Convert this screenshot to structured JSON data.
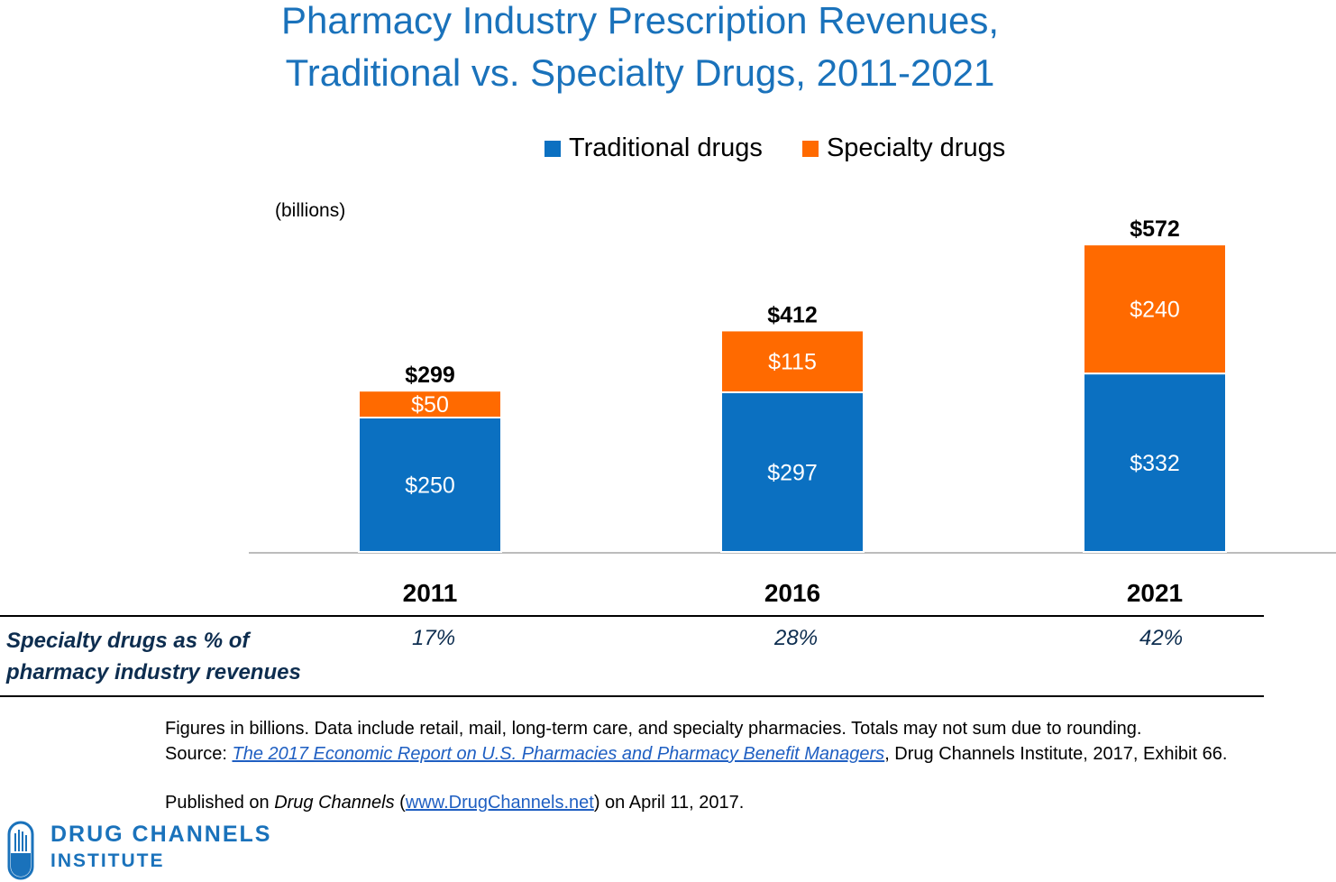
{
  "title": {
    "line1": "Pharmacy Industry Prescription Revenues,",
    "line2": "Traditional vs. Specialty Drugs, 2011-2021"
  },
  "legend": {
    "traditional": "Traditional drugs",
    "specialty": "Specialty drugs"
  },
  "unit_label": "(billions)",
  "colors": {
    "traditional": "#0b70c1",
    "specialty": "#ff6a00",
    "title": "#1a72bb",
    "pct_text": "#0d2d4f"
  },
  "chart_data": {
    "type": "bar",
    "stacked": true,
    "categories": [
      "2011",
      "2016",
      "2021"
    ],
    "series": [
      {
        "name": "Traditional drugs",
        "values": [
          250,
          297,
          332
        ],
        "labels": [
          "$250",
          "$297",
          "$332"
        ]
      },
      {
        "name": "Specialty drugs",
        "values": [
          50,
          115,
          240
        ],
        "labels": [
          "$50",
          "$115",
          "$240"
        ]
      }
    ],
    "totals": [
      299,
      412,
      572
    ],
    "total_labels": [
      "$299",
      "$412",
      "$572"
    ],
    "ylabel": "(billions)",
    "grid": false,
    "legend_position": "top"
  },
  "specialty_share": {
    "heading_line1": "Specialty drugs as % of",
    "heading_line2": "pharmacy industry revenues",
    "values": [
      "17%",
      "28%",
      "42%"
    ]
  },
  "footnote": {
    "line1": "Figures in billions. Data include retail, mail, long-term care, and specialty pharmacies.  Totals may not sum due to rounding.",
    "source_prefix": "Source: ",
    "source_link": "The 2017 Economic Report on U.S. Pharmacies and Pharmacy Benefit Managers",
    "source_suffix": ", Drug Channels Institute, 2017, Exhibit 66.",
    "published_prefix": "Published on ",
    "published_italic": "Drug Channels",
    "published_open": " (",
    "published_link": "www.DrugChannels.net",
    "published_suffix": ")  on April 11, 2017."
  },
  "logo": {
    "line1": "DRUG CHANNELS",
    "line2": "INSTITUTE"
  }
}
